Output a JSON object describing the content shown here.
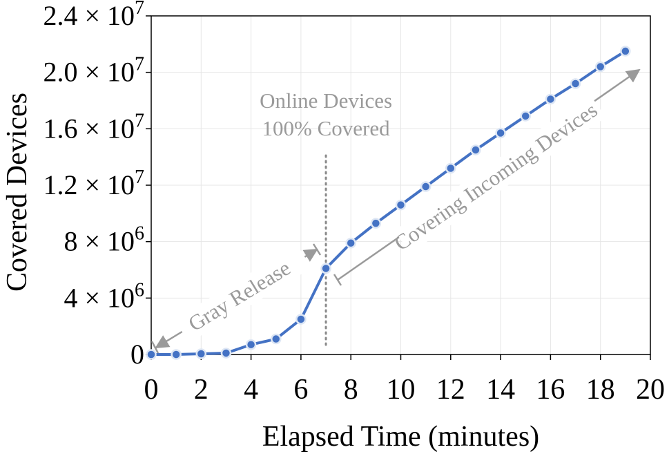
{
  "chart_data": {
    "type": "line",
    "title": "",
    "xlabel": "Elapsed Time (minutes)",
    "ylabel": "Covered Devices",
    "xlim": [
      0,
      20
    ],
    "ylim": [
      0,
      24000000
    ],
    "x_ticks": [
      "0",
      "2",
      "4",
      "6",
      "8",
      "10",
      "12",
      "14",
      "16",
      "18",
      "20"
    ],
    "y_ticks": [
      {
        "value": 0,
        "mantissa": "0",
        "exponent": ""
      },
      {
        "value": 4000000,
        "mantissa": "4 × 10",
        "exponent": "6"
      },
      {
        "value": 8000000,
        "mantissa": "8 × 10",
        "exponent": "6"
      },
      {
        "value": 12000000,
        "mantissa": "1.2 × 10",
        "exponent": "7"
      },
      {
        "value": 16000000,
        "mantissa": "1.6 × 10",
        "exponent": "7"
      },
      {
        "value": 20000000,
        "mantissa": "2.0 × 10",
        "exponent": "7"
      },
      {
        "value": 24000000,
        "mantissa": "2.4 × 10",
        "exponent": "7"
      }
    ],
    "grid": true,
    "series": [
      {
        "x": [
          0,
          1,
          2,
          3,
          4,
          5,
          6,
          7,
          8,
          9,
          10,
          11,
          12,
          13,
          14,
          15,
          16,
          17,
          18,
          19
        ],
        "y": [
          0,
          0,
          50000,
          100000,
          700000,
          1100000,
          2500000,
          6100000,
          7900000,
          9300000,
          10600000,
          11900000,
          13200000,
          14500000,
          15700000,
          16900000,
          18100000,
          19200000,
          20400000,
          21500000
        ],
        "color": "#4472c4"
      }
    ],
    "annotations": {
      "vertical_line_x": 7,
      "online_line1": "Online Devices",
      "online_line2": "100% Covered",
      "gray_release": "Gray Release",
      "covering_incoming": "Covering Incoming Devices"
    }
  },
  "colors": {
    "line": "#4472c4",
    "marker_edge": "#dde6f4",
    "annotation": "#9a9a9a",
    "grid": "#e6e6e6"
  }
}
